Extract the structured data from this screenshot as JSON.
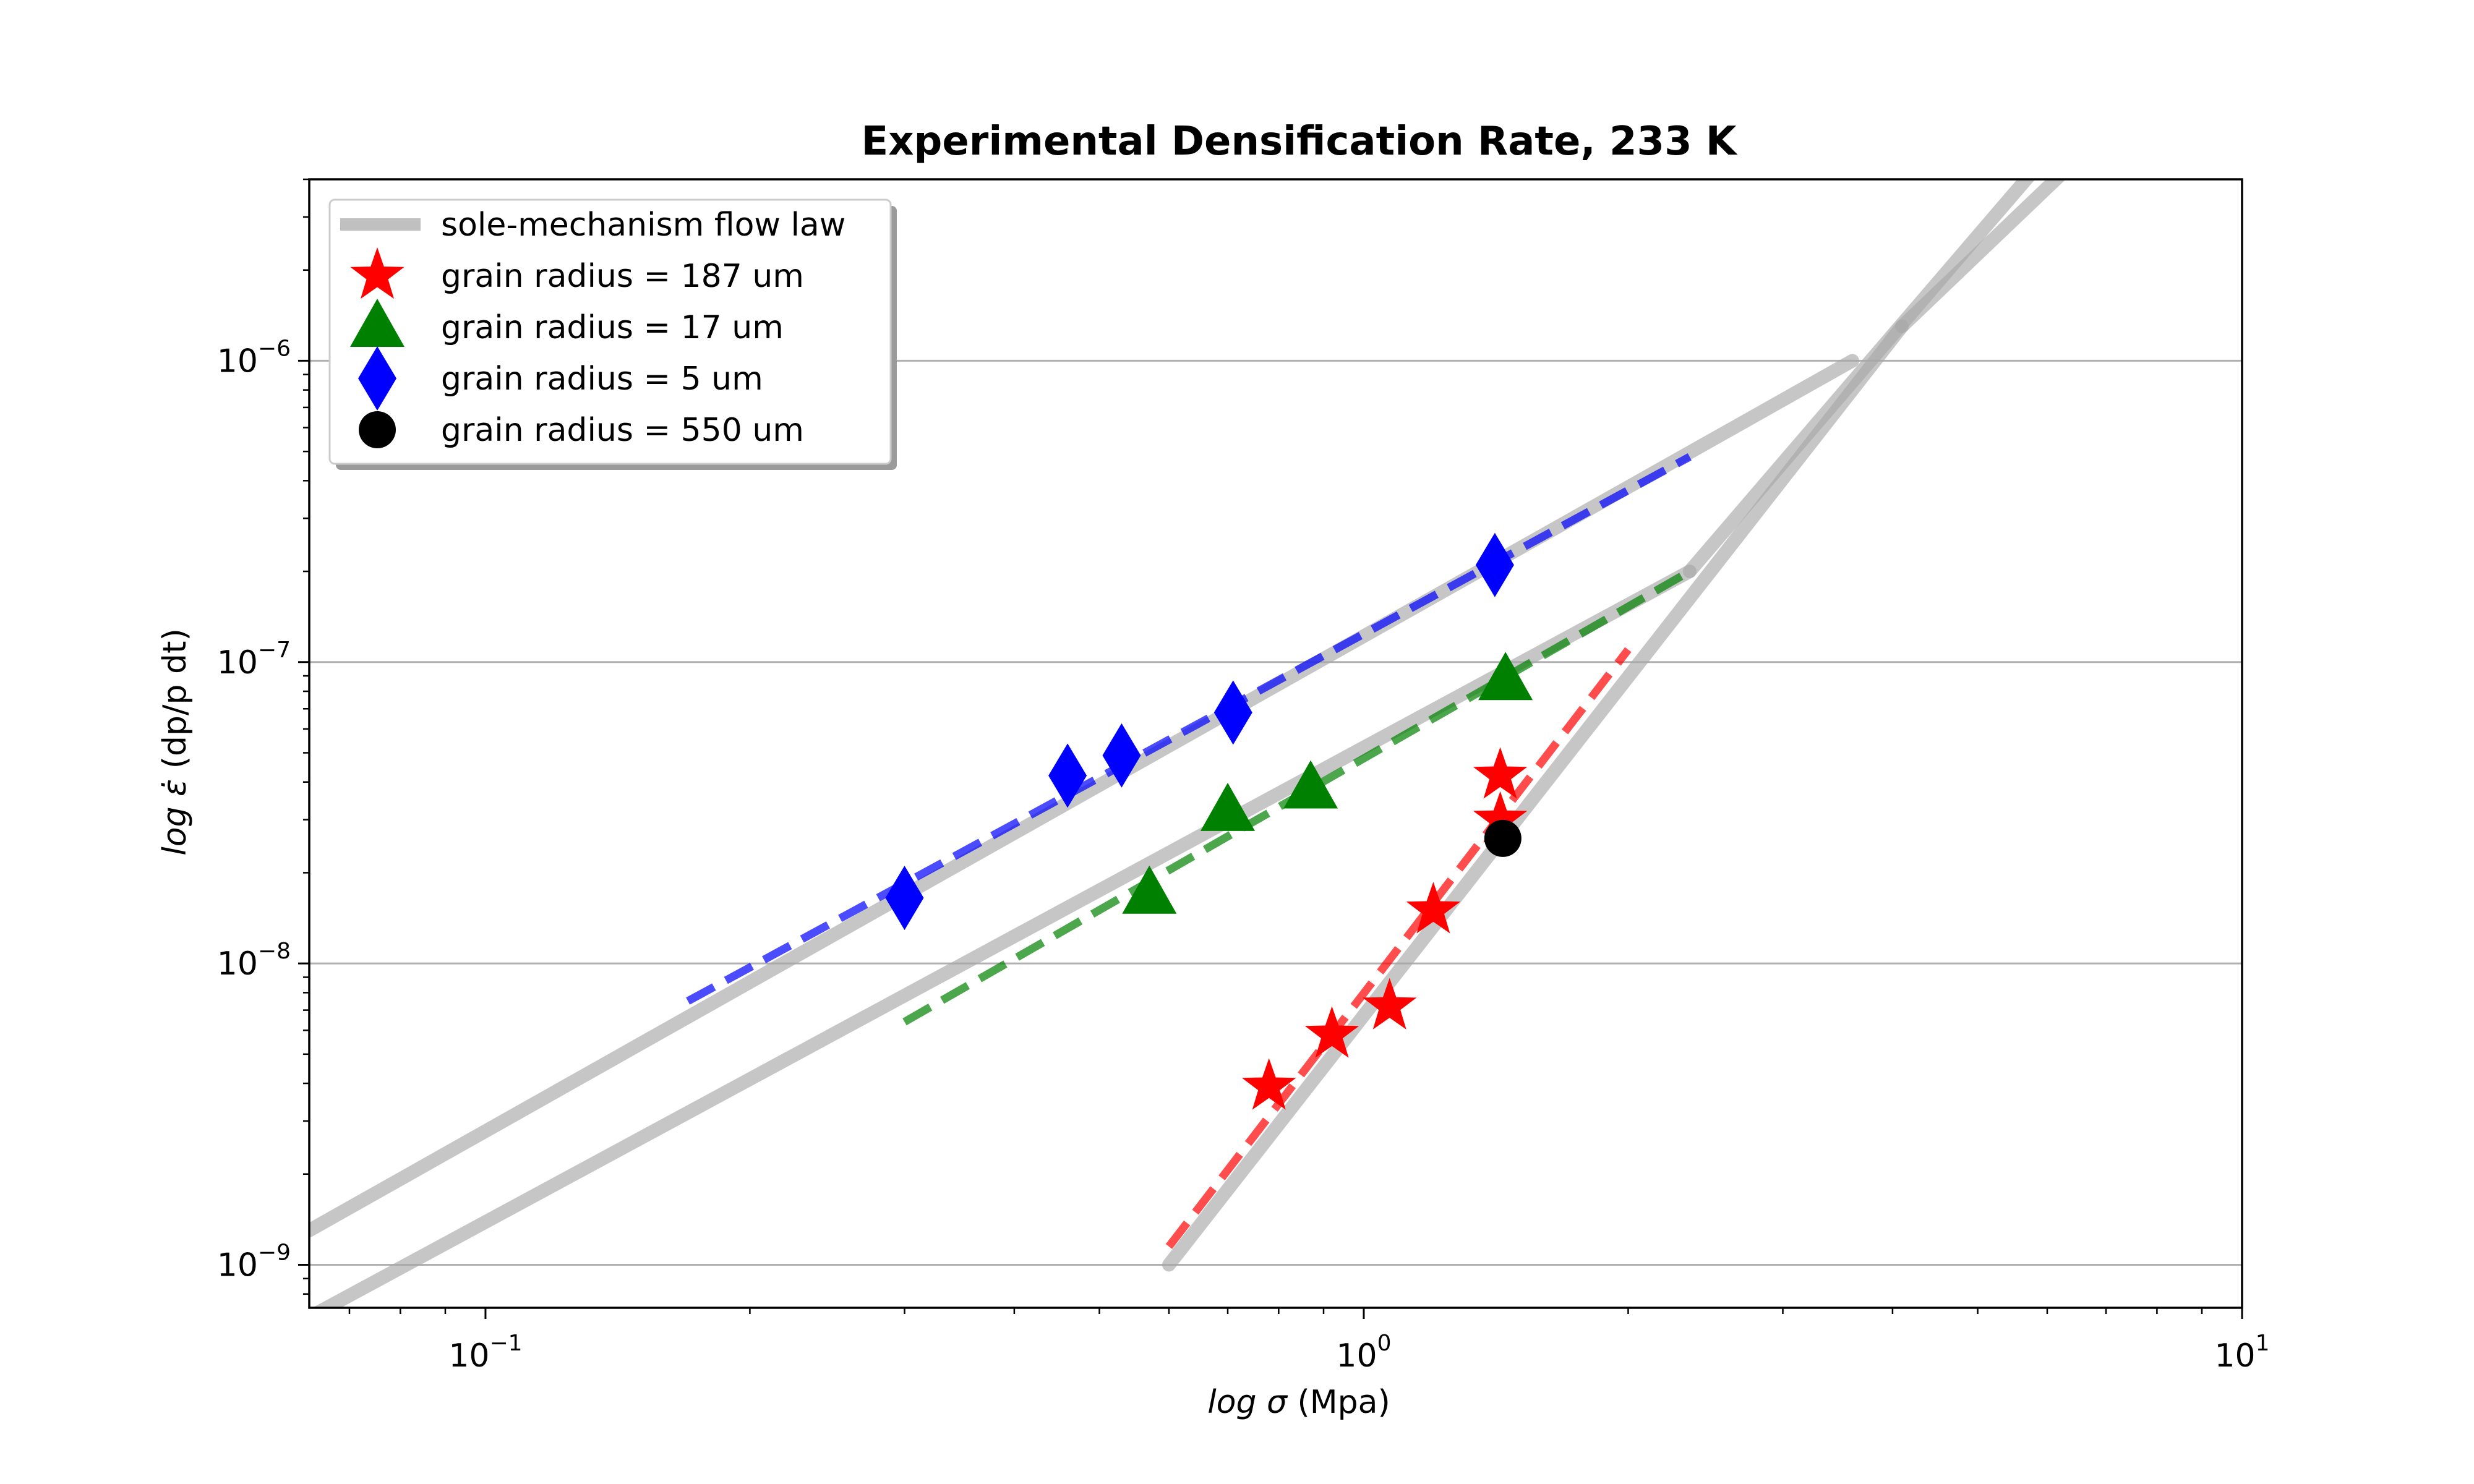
{
  "chart_data": {
    "type": "scatter",
    "title": "Experimental Densification Rate, 233 K",
    "xlabel_prefix": "log",
    "xlabel_symbol": "σ",
    "xlabel_unit": "(Mpa)",
    "ylabel_prefix": "log",
    "ylabel_symbol": "ε̇",
    "ylabel_unit": "(dp/p dt)",
    "x_scale": "log",
    "y_scale": "log",
    "xlim": [
      0.063,
      10
    ],
    "ylim": [
      7.2e-10,
      4e-06
    ],
    "grid": "horizontal major",
    "legend_position": "top-left",
    "x_ticks": [
      {
        "value": 0.1,
        "base": "10",
        "exp": "−1"
      },
      {
        "value": 1,
        "base": "10",
        "exp": "0"
      },
      {
        "value": 10,
        "base": "10",
        "exp": "1"
      }
    ],
    "y_ticks": [
      {
        "value": 1e-09,
        "base": "10",
        "exp": "−9"
      },
      {
        "value": 1e-08,
        "base": "10",
        "exp": "−8"
      },
      {
        "value": 1e-07,
        "base": "10",
        "exp": "−7"
      },
      {
        "value": 1e-06,
        "base": "10",
        "exp": "−6"
      }
    ],
    "flow_law_label": "sole-mechanism flow law",
    "flow_laws": [
      {
        "name": "flow-law-187um",
        "x": [
          0.6,
          4.1
        ],
        "y": [
          1e-09,
          1.3e-06
        ]
      },
      {
        "name": "flow-law-17um",
        "x": [
          0.063,
          2.35
        ],
        "y": [
          6.7e-10,
          2e-07
        ]
      },
      {
        "name": "flow-law-5um",
        "x": [
          0.063,
          3.6
        ],
        "y": [
          1.3e-09,
          1e-06
        ]
      },
      {
        "name": "flow-law-steep-a",
        "x": [
          2.35,
          5.8
        ],
        "y": [
          2e-07,
          4.3e-06
        ]
      },
      {
        "name": "flow-law-steep-b",
        "x": [
          4.1,
          6.3
        ],
        "y": [
          1.3e-06,
          4.3e-06
        ]
      }
    ],
    "series": [
      {
        "name": "grain radius = 187 um",
        "color": "#ff0000",
        "marker": "star",
        "x": [
          0.78,
          0.92,
          1.07,
          1.2,
          1.43,
          1.43
        ],
        "y": [
          3.9e-09,
          5.8e-09,
          7.2e-09,
          1.5e-08,
          3e-08,
          4.2e-08
        ],
        "fit": {
          "x": [
            0.6,
            2.0
          ],
          "y": [
            1.15e-09,
            1.1e-07
          ]
        }
      },
      {
        "name": "grain radius = 17 um",
        "color": "#008000",
        "marker": "triangle",
        "x": [
          0.57,
          0.7,
          0.87,
          1.45
        ],
        "y": [
          1.7e-08,
          3.2e-08,
          3.8e-08,
          8.7e-08
        ],
        "fit": {
          "x": [
            0.3,
            2.35
          ],
          "y": [
            6.4e-09,
            2e-07
          ]
        }
      },
      {
        "name": "grain radius = 5 um",
        "color": "#0000ff",
        "marker": "diamond",
        "x": [
          0.3,
          0.46,
          0.53,
          0.71,
          1.41
        ],
        "y": [
          1.65e-08,
          4.2e-08,
          4.9e-08,
          6.8e-08,
          2.1e-07
        ],
        "fit": {
          "x": [
            0.17,
            2.35
          ],
          "y": [
            7.5e-09,
            4.8e-07
          ]
        }
      },
      {
        "name": "grain radius = 550 um",
        "color": "#000000",
        "marker": "circle",
        "x": [
          1.44
        ],
        "y": [
          2.6e-08
        ]
      }
    ]
  }
}
